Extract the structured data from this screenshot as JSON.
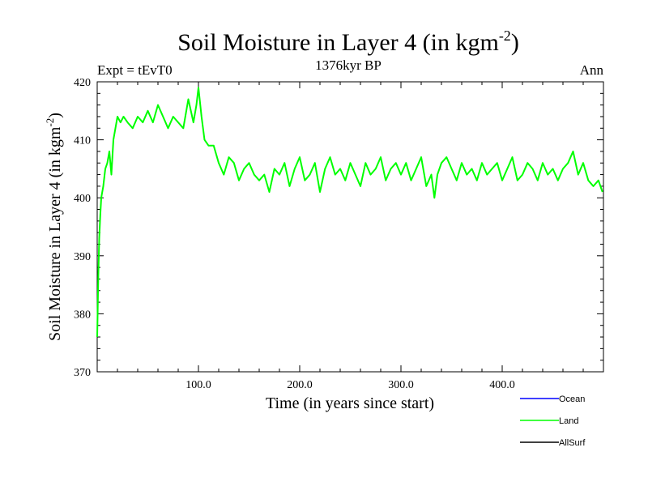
{
  "chart_data": {
    "type": "line",
    "title": "Soil Moisture in Layer 4 (in kgm",
    "title_superscript": "-2",
    "title_close": ")",
    "subtitle": "1376kyr BP",
    "left_label": "Expt = tEvT0",
    "right_label": "Ann",
    "xlabel": "Time (in years since start)",
    "ylabel": "Soil Moisture in Layer 4 (in kgm",
    "ylabel_superscript": "-2",
    "ylabel_close": ")",
    "xlim": [
      0,
      500
    ],
    "ylim": [
      370,
      420
    ],
    "xticks": [
      100,
      200,
      300,
      400
    ],
    "xtick_labels": [
      "100.0",
      "200.0",
      "300.0",
      "400.0"
    ],
    "yticks": [
      370,
      380,
      390,
      400,
      410,
      420
    ],
    "ytick_labels": [
      "370",
      "380",
      "390",
      "400",
      "410",
      "420"
    ],
    "legend": [
      {
        "name": "Ocean",
        "color": "#0000ff"
      },
      {
        "name": "Land",
        "color": "#00ff00"
      },
      {
        "name": "AllSurf",
        "color": "#000000"
      }
    ],
    "series": [
      {
        "name": "Land",
        "color": "#00ff00",
        "x": [
          0,
          1,
          2,
          3,
          4,
          6,
          8,
          10,
          12,
          14,
          16,
          18,
          20,
          23,
          26,
          30,
          35,
          40,
          45,
          50,
          55,
          60,
          65,
          70,
          75,
          80,
          85,
          90,
          95,
          98,
          100,
          103,
          106,
          110,
          115,
          120,
          125,
          130,
          135,
          140,
          145,
          150,
          155,
          160,
          165,
          170,
          175,
          180,
          185,
          190,
          195,
          200,
          205,
          210,
          215,
          220,
          225,
          230,
          235,
          240,
          245,
          250,
          255,
          260,
          265,
          270,
          275,
          280,
          285,
          290,
          295,
          300,
          305,
          310,
          315,
          320,
          325,
          330,
          333,
          336,
          340,
          345,
          350,
          355,
          360,
          365,
          370,
          375,
          380,
          385,
          390,
          395,
          400,
          405,
          410,
          415,
          420,
          425,
          430,
          435,
          440,
          445,
          450,
          455,
          460,
          465,
          470,
          475,
          480,
          485,
          490,
          495,
          499
        ],
        "values": [
          376,
          386,
          393,
          397,
          400,
          402,
          405,
          406,
          408,
          404,
          410,
          412,
          414,
          413,
          414,
          413,
          412,
          414,
          413,
          415,
          413,
          416,
          414,
          412,
          414,
          413,
          412,
          417,
          413,
          416,
          419,
          414,
          410,
          409,
          409,
          406,
          404,
          407,
          406,
          403,
          405,
          406,
          404,
          403,
          404,
          401,
          405,
          404,
          406,
          402,
          405,
          407,
          403,
          404,
          406,
          401,
          405,
          407,
          404,
          405,
          403,
          406,
          404,
          402,
          406,
          404,
          405,
          407,
          403,
          405,
          406,
          404,
          406,
          403,
          405,
          407,
          402,
          404,
          400,
          404,
          406,
          407,
          405,
          403,
          406,
          404,
          405,
          403,
          406,
          404,
          405,
          406,
          403,
          405,
          407,
          403,
          404,
          406,
          405,
          403,
          406,
          404,
          405,
          403,
          405,
          406,
          408,
          404,
          406,
          403,
          402,
          403,
          401
        ]
      }
    ]
  }
}
